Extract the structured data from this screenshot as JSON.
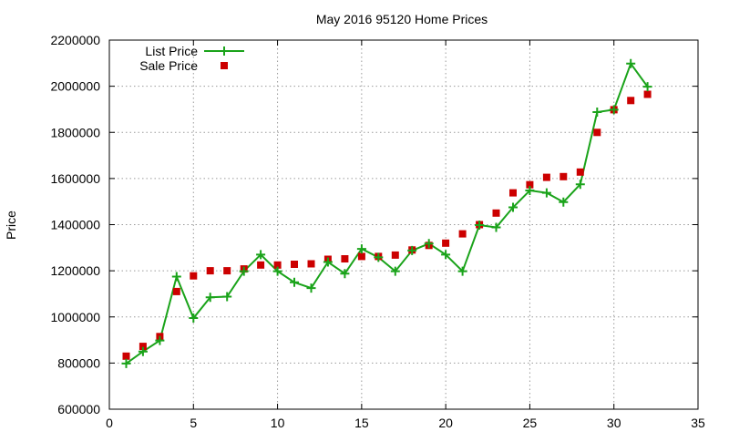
{
  "chart_data": {
    "type": "line",
    "title": "May 2016 95120 Home Prices",
    "xlabel": "",
    "ylabel": "Price",
    "xlim": [
      0,
      35
    ],
    "ylim": [
      600000,
      2200000
    ],
    "xticks": [
      0,
      5,
      10,
      15,
      20,
      25,
      30,
      35
    ],
    "yticks": [
      600000,
      800000,
      1000000,
      1200000,
      1400000,
      1600000,
      1800000,
      2000000,
      2200000
    ],
    "grid": true,
    "legend_position": "top-left",
    "series": [
      {
        "name": "List Price",
        "style": "line-with-plus-markers",
        "color": "#1aa31a",
        "x": [
          1,
          2,
          3,
          4,
          5,
          6,
          7,
          8,
          9,
          10,
          11,
          12,
          13,
          14,
          15,
          16,
          17,
          18,
          19,
          20,
          21,
          22,
          23,
          24,
          25,
          26,
          27,
          28,
          29,
          30,
          31,
          32
        ],
        "y": [
          798000,
          850000,
          898000,
          1175000,
          995000,
          1085000,
          1088000,
          1198000,
          1270000,
          1198000,
          1150000,
          1125000,
          1238000,
          1188000,
          1295000,
          1258000,
          1198000,
          1288000,
          1318000,
          1270000,
          1198000,
          1398000,
          1388000,
          1475000,
          1548000,
          1538000,
          1498000,
          1575000,
          1888000,
          1898000,
          2098000,
          1998000
        ]
      },
      {
        "name": "Sale Price",
        "style": "square-markers",
        "color": "#cc0000",
        "x": [
          1,
          2,
          3,
          4,
          5,
          6,
          7,
          8,
          9,
          10,
          11,
          12,
          13,
          14,
          15,
          16,
          17,
          18,
          19,
          20,
          21,
          22,
          23,
          24,
          25,
          26,
          27,
          28,
          29,
          30,
          31,
          32
        ],
        "y": [
          830000,
          872000,
          915000,
          1110000,
          1178000,
          1200000,
          1200000,
          1208000,
          1225000,
          1225000,
          1228000,
          1230000,
          1250000,
          1252000,
          1262000,
          1262000,
          1268000,
          1290000,
          1310000,
          1320000,
          1360000,
          1400000,
          1450000,
          1538000,
          1573000,
          1605000,
          1608000,
          1628000,
          1800000,
          1898000,
          1938000,
          1965000
        ]
      }
    ]
  }
}
